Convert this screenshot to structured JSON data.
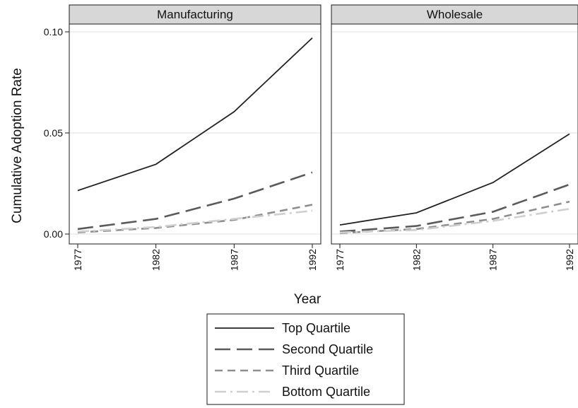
{
  "chart_data": {
    "type": "line",
    "ylabel": "Cumulative Adoption Rate",
    "xlabel": "Year",
    "x": [
      "1977",
      "1982",
      "1987",
      "1992"
    ],
    "ylim": [
      0,
      0.1
    ],
    "yticks": [
      "0.00",
      "0.05",
      "0.10"
    ],
    "grid": true,
    "legend_position": "bottom",
    "panels": [
      {
        "title": "Manufacturing",
        "series": [
          {
            "name": "Top Quartile",
            "values": [
              0.0215,
              0.0345,
              0.0605,
              0.097
            ]
          },
          {
            "name": "Second Quartile",
            "values": [
              0.0025,
              0.0075,
              0.0175,
              0.0305
            ]
          },
          {
            "name": "Third Quartile",
            "values": [
              0.0008,
              0.003,
              0.007,
              0.0145
            ]
          },
          {
            "name": "Bottom Quartile",
            "values": [
              0.0012,
              0.0035,
              0.0075,
              0.0115
            ]
          }
        ]
      },
      {
        "title": "Wholesale",
        "series": [
          {
            "name": "Top Quartile",
            "values": [
              0.0045,
              0.0105,
              0.0255,
              0.0495
            ]
          },
          {
            "name": "Second Quartile",
            "values": [
              0.0012,
              0.004,
              0.011,
              0.0245
            ]
          },
          {
            "name": "Third Quartile",
            "values": [
              0.0005,
              0.0025,
              0.0075,
              0.016
            ]
          },
          {
            "name": "Bottom Quartile",
            "values": [
              0.0008,
              0.002,
              0.0065,
              0.0125
            ]
          }
        ]
      }
    ],
    "series_styles": [
      {
        "color": "#222222",
        "dash": ""
      },
      {
        "color": "#5a5a5a",
        "dash": "long-dash"
      },
      {
        "color": "#8e8e8e",
        "dash": "short-dash"
      },
      {
        "color": "#cfcfcf",
        "dash": "dash-dot"
      }
    ]
  }
}
